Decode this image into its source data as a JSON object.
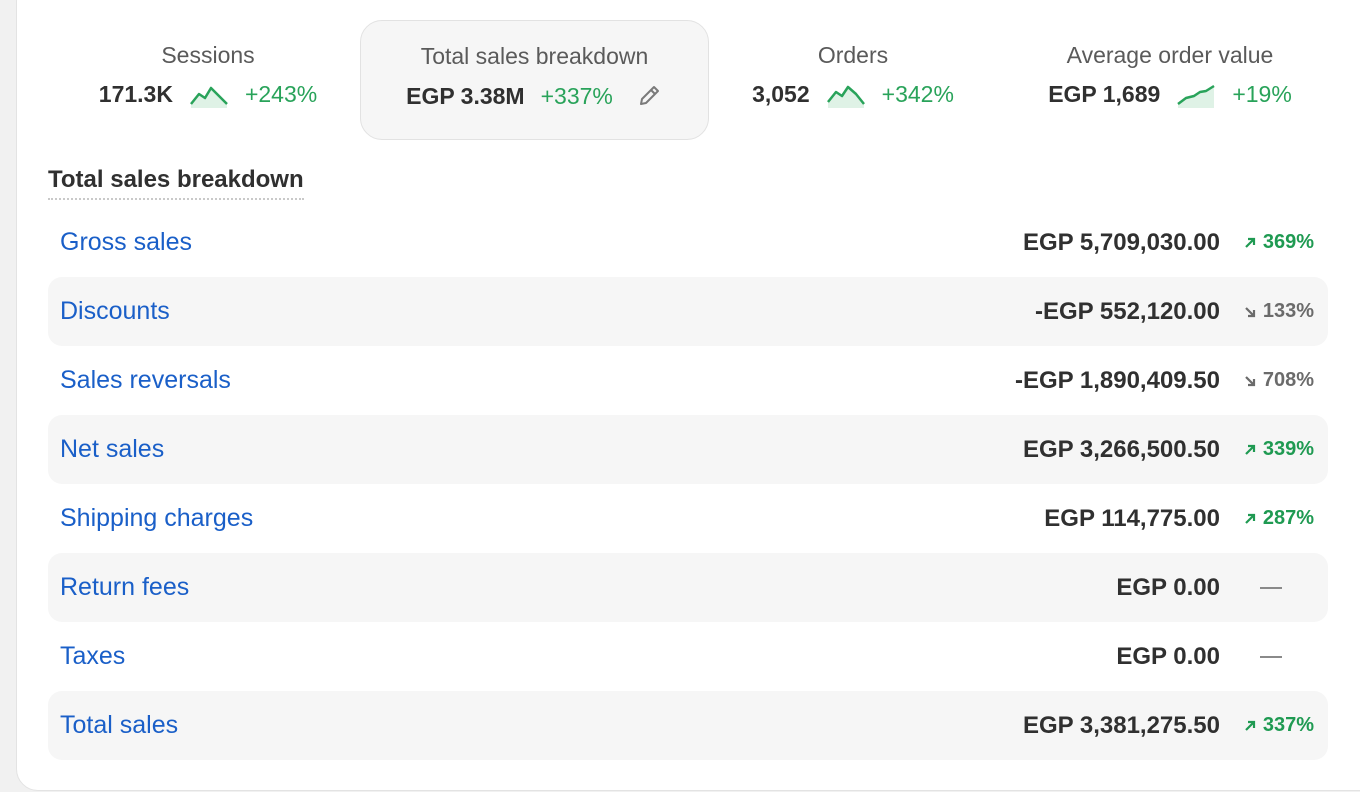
{
  "metrics": [
    {
      "label": "Sessions",
      "value": "171.3K",
      "change": "+243%",
      "icon": "sparkline-icon"
    },
    {
      "label": "Total sales breakdown",
      "value": "EGP 3.38M",
      "change": "+337%",
      "icon": "pencil-icon"
    },
    {
      "label": "Orders",
      "value": "3,052",
      "change": "+342%",
      "icon": "sparkline-icon"
    },
    {
      "label": "Average order value",
      "value": "EGP 1,689",
      "change": "+19%",
      "icon": "sparkline-icon"
    }
  ],
  "breakdown": {
    "title": "Total sales breakdown",
    "rows": [
      {
        "label": "Gross sales",
        "value": "EGP 5,709,030.00",
        "change": "369%",
        "trend": "up"
      },
      {
        "label": "Discounts",
        "value": "-EGP 552,120.00",
        "change": "133%",
        "trend": "down"
      },
      {
        "label": "Sales reversals",
        "value": "-EGP 1,890,409.50",
        "change": "708%",
        "trend": "down"
      },
      {
        "label": "Net sales",
        "value": "EGP 3,266,500.50",
        "change": "339%",
        "trend": "up"
      },
      {
        "label": "Shipping charges",
        "value": "EGP 114,775.00",
        "change": "287%",
        "trend": "up"
      },
      {
        "label": "Return fees",
        "value": "EGP 0.00",
        "change": "",
        "trend": "none"
      },
      {
        "label": "Taxes",
        "value": "EGP 0.00",
        "change": "",
        "trend": "none"
      },
      {
        "label": "Total sales",
        "value": "EGP 3,381,275.50",
        "change": "337%",
        "trend": "up"
      }
    ]
  },
  "colors": {
    "link": "#1a5fc8",
    "up": "#1f9a52",
    "down": "#6b6b6b",
    "spark": "#29a35a"
  }
}
